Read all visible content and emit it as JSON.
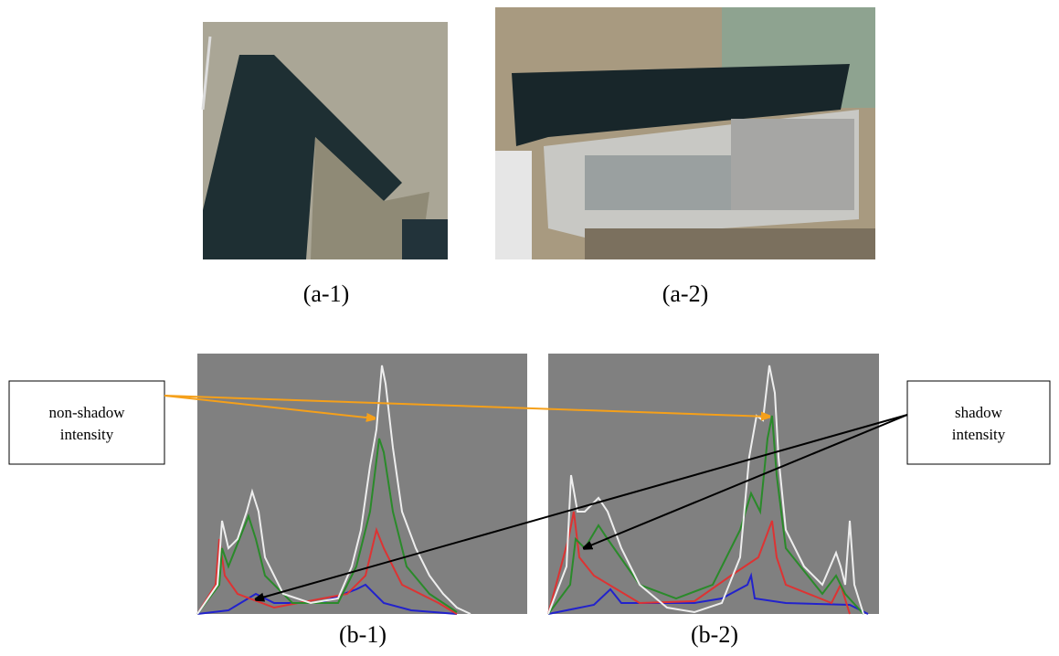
{
  "figures": [
    {
      "caption": "(a-1)"
    },
    {
      "caption": "(a-2)"
    },
    {
      "caption": "(b-1)"
    },
    {
      "caption": "(b-2)"
    }
  ],
  "callouts": [
    {
      "lines": [
        "non-shadow",
        "intensity"
      ]
    },
    {
      "lines": [
        "shadow",
        "intensity"
      ]
    }
  ]
}
